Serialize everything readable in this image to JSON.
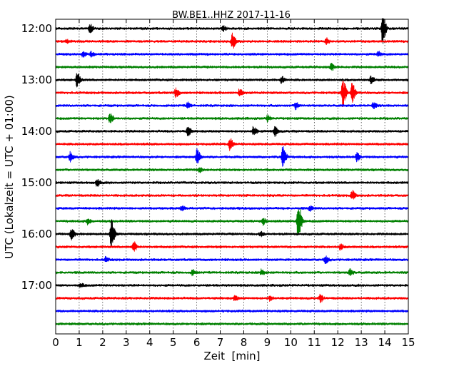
{
  "chart_data": {
    "type": "line",
    "title": "BW.BE1..HHZ 2017-11-16",
    "xlabel": "Zeit  [min]",
    "ylabel": "UTC (Lokalzeit = UTC + 01:00)",
    "xlim": [
      0,
      15
    ],
    "x_ticks": [
      "0",
      "1",
      "2",
      "3",
      "4",
      "5",
      "6",
      "7",
      "8",
      "9",
      "10",
      "11",
      "12",
      "13",
      "14",
      "15"
    ],
    "y_tick_labels": [
      "12:00",
      "13:00",
      "14:00",
      "15:00",
      "16:00",
      "17:00"
    ],
    "grid": "vertical dotted at each minute",
    "trace_interval_min": 15,
    "color_cycle": [
      "#000000",
      "#ff0000",
      "#0000ff",
      "#008000"
    ],
    "traces": [
      {
        "start": "12:00",
        "events": [
          {
            "x": 1.45,
            "amp": 0.5
          },
          {
            "x": 7.1,
            "amp": 0.35
          },
          {
            "x": 13.9,
            "amp": 2.0
          }
        ]
      },
      {
        "start": "12:15",
        "events": [
          {
            "x": 0.45,
            "amp": 0.25
          },
          {
            "x": 7.5,
            "amp": 1.1
          },
          {
            "x": 11.5,
            "amp": 0.35
          }
        ]
      },
      {
        "start": "12:30",
        "events": [
          {
            "x": 1.15,
            "amp": 0.35
          },
          {
            "x": 1.5,
            "amp": 0.3
          },
          {
            "x": 13.7,
            "amp": 0.3
          }
        ]
      },
      {
        "start": "12:45",
        "events": [
          {
            "x": 11.7,
            "amp": 0.45
          }
        ]
      },
      {
        "start": "13:00",
        "events": [
          {
            "x": 0.9,
            "amp": 0.9
          },
          {
            "x": 9.6,
            "amp": 0.4
          },
          {
            "x": 13.4,
            "amp": 0.4
          }
        ]
      },
      {
        "start": "13:15",
        "events": [
          {
            "x": 5.1,
            "amp": 0.6
          },
          {
            "x": 7.8,
            "amp": 0.45
          },
          {
            "x": 12.2,
            "amp": 1.8
          },
          {
            "x": 12.6,
            "amp": 1.2
          }
        ]
      },
      {
        "start": "13:30",
        "events": [
          {
            "x": 5.6,
            "amp": 0.35
          },
          {
            "x": 10.2,
            "amp": 0.45
          },
          {
            "x": 13.5,
            "amp": 0.35
          }
        ]
      },
      {
        "start": "13:45",
        "events": [
          {
            "x": 2.3,
            "amp": 0.6
          },
          {
            "x": 9.0,
            "amp": 0.35
          }
        ]
      },
      {
        "start": "14:00",
        "events": [
          {
            "x": 5.6,
            "amp": 0.6
          },
          {
            "x": 8.4,
            "amp": 0.55
          },
          {
            "x": 9.3,
            "amp": 0.6
          }
        ]
      },
      {
        "start": "14:15",
        "events": [
          {
            "x": 7.4,
            "amp": 0.75
          }
        ]
      },
      {
        "start": "14:30",
        "events": [
          {
            "x": 0.6,
            "amp": 0.6
          },
          {
            "x": 6.0,
            "amp": 1.1
          },
          {
            "x": 9.65,
            "amp": 1.6
          },
          {
            "x": 12.8,
            "amp": 0.5
          }
        ]
      },
      {
        "start": "14:45",
        "events": [
          {
            "x": 6.1,
            "amp": 0.3
          }
        ]
      },
      {
        "start": "15:00",
        "events": [
          {
            "x": 1.75,
            "amp": 0.45
          }
        ]
      },
      {
        "start": "15:15",
        "events": [
          {
            "x": 12.6,
            "amp": 0.6
          }
        ]
      },
      {
        "start": "15:30",
        "events": [
          {
            "x": 5.35,
            "amp": 0.3
          },
          {
            "x": 10.8,
            "amp": 0.3
          }
        ]
      },
      {
        "start": "15:45",
        "events": [
          {
            "x": 1.35,
            "amp": 0.35
          },
          {
            "x": 8.8,
            "amp": 0.45
          },
          {
            "x": 10.3,
            "amp": 2.8
          }
        ]
      },
      {
        "start": "16:00",
        "events": [
          {
            "x": 0.65,
            "amp": 0.9
          },
          {
            "x": 2.35,
            "amp": 1.9
          },
          {
            "x": 8.7,
            "amp": 0.3
          }
        ]
      },
      {
        "start": "16:15",
        "events": [
          {
            "x": 3.3,
            "amp": 0.65
          },
          {
            "x": 12.1,
            "amp": 0.35
          }
        ]
      },
      {
        "start": "16:30",
        "events": [
          {
            "x": 2.1,
            "amp": 0.3
          },
          {
            "x": 11.45,
            "amp": 0.5
          }
        ]
      },
      {
        "start": "16:45",
        "events": [
          {
            "x": 5.8,
            "amp": 0.3
          },
          {
            "x": 8.75,
            "amp": 0.4
          },
          {
            "x": 12.5,
            "amp": 0.45
          }
        ]
      },
      {
        "start": "17:00",
        "events": [
          {
            "x": 1.05,
            "amp": 0.25
          }
        ]
      },
      {
        "start": "17:15",
        "events": [
          {
            "x": 7.6,
            "amp": 0.3
          },
          {
            "x": 9.1,
            "amp": 0.3
          },
          {
            "x": 11.25,
            "amp": 0.45
          }
        ]
      },
      {
        "start": "17:30",
        "events": []
      },
      {
        "start": "17:45",
        "events": []
      }
    ]
  }
}
